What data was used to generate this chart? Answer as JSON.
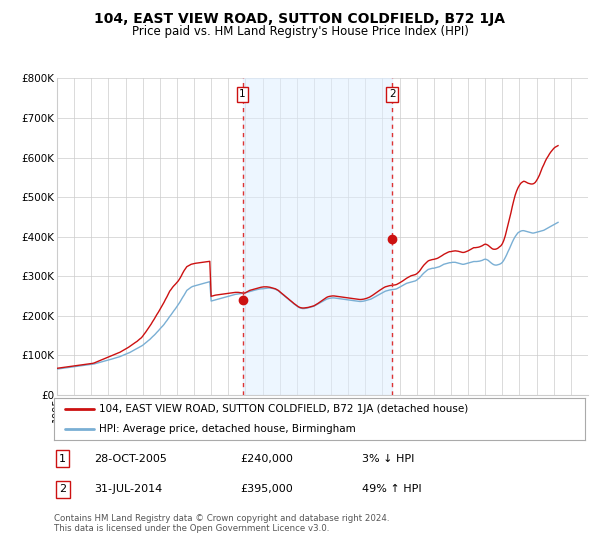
{
  "title": "104, EAST VIEW ROAD, SUTTON COLDFIELD, B72 1JA",
  "subtitle": "Price paid vs. HM Land Registry's House Price Index (HPI)",
  "title_fontsize": 10,
  "subtitle_fontsize": 8.5,
  "ylabel_ticks": [
    "£0",
    "£100K",
    "£200K",
    "£300K",
    "£400K",
    "£500K",
    "£600K",
    "£700K",
    "£800K"
  ],
  "ytick_values": [
    0,
    100000,
    200000,
    300000,
    400000,
    500000,
    600000,
    700000,
    800000
  ],
  "ylim": [
    0,
    800000
  ],
  "xlim_start": 1995,
  "xlim_end": 2026,
  "hpi_color": "#7aafd4",
  "price_color": "#cc1111",
  "marker_color": "#cc1111",
  "shade_color": "#ddeeff",
  "grid_color": "#cccccc",
  "vline_color": "#dd3333",
  "vline_style": ":",
  "background_color": "#ffffff",
  "legend_border_color": "#aaaaaa",
  "transaction1_year": 2005.83,
  "transaction1_price": 240000,
  "transaction1_label": "1",
  "transaction1_date": "28-OCT-2005",
  "transaction1_pct": "3% ↓ HPI",
  "transaction2_year": 2014.58,
  "transaction2_price": 395000,
  "transaction2_label": "2",
  "transaction2_date": "31-JUL-2014",
  "transaction2_pct": "49% ↑ HPI",
  "legend1_text": "104, EAST VIEW ROAD, SUTTON COLDFIELD, B72 1JA (detached house)",
  "legend2_text": "HPI: Average price, detached house, Birmingham",
  "footer_text": "Contains HM Land Registry data © Crown copyright and database right 2024.\nThis data is licensed under the Open Government Licence v3.0.",
  "hpi_years": [
    1995,
    1995.08,
    1995.17,
    1995.25,
    1995.33,
    1995.42,
    1995.5,
    1995.58,
    1995.67,
    1995.75,
    1995.83,
    1995.92,
    1996,
    1996.08,
    1996.17,
    1996.25,
    1996.33,
    1996.42,
    1996.5,
    1996.58,
    1996.67,
    1996.75,
    1996.83,
    1996.92,
    1997,
    1997.08,
    1997.17,
    1997.25,
    1997.33,
    1997.42,
    1997.5,
    1997.58,
    1997.67,
    1997.75,
    1997.83,
    1997.92,
    1998,
    1998.08,
    1998.17,
    1998.25,
    1998.33,
    1998.42,
    1998.5,
    1998.58,
    1998.67,
    1998.75,
    1998.83,
    1998.92,
    1999,
    1999.08,
    1999.17,
    1999.25,
    1999.33,
    1999.42,
    1999.5,
    1999.58,
    1999.67,
    1999.75,
    1999.83,
    1999.92,
    2000,
    2000.08,
    2000.17,
    2000.25,
    2000.33,
    2000.42,
    2000.5,
    2000.58,
    2000.67,
    2000.75,
    2000.83,
    2000.92,
    2001,
    2001.08,
    2001.17,
    2001.25,
    2001.33,
    2001.42,
    2001.5,
    2001.58,
    2001.67,
    2001.75,
    2001.83,
    2001.92,
    2002,
    2002.08,
    2002.17,
    2002.25,
    2002.33,
    2002.42,
    2002.5,
    2002.58,
    2002.67,
    2002.75,
    2002.83,
    2002.92,
    2003,
    2003.08,
    2003.17,
    2003.25,
    2003.33,
    2003.42,
    2003.5,
    2003.58,
    2003.67,
    2003.75,
    2003.83,
    2003.92,
    2004,
    2004.08,
    2004.17,
    2004.25,
    2004.33,
    2004.42,
    2004.5,
    2004.58,
    2004.67,
    2004.75,
    2004.83,
    2004.92,
    2005,
    2005.08,
    2005.17,
    2005.25,
    2005.33,
    2005.42,
    2005.5,
    2005.58,
    2005.67,
    2005.75,
    2005.83,
    2005.92,
    2006,
    2006.08,
    2006.17,
    2006.25,
    2006.33,
    2006.42,
    2006.5,
    2006.58,
    2006.67,
    2006.75,
    2006.83,
    2006.92,
    2007,
    2007.08,
    2007.17,
    2007.25,
    2007.33,
    2007.42,
    2007.5,
    2007.58,
    2007.67,
    2007.75,
    2007.83,
    2007.92,
    2008,
    2008.08,
    2008.17,
    2008.25,
    2008.33,
    2008.42,
    2008.5,
    2008.58,
    2008.67,
    2008.75,
    2008.83,
    2008.92,
    2009,
    2009.08,
    2009.17,
    2009.25,
    2009.33,
    2009.42,
    2009.5,
    2009.58,
    2009.67,
    2009.75,
    2009.83,
    2009.92,
    2010,
    2010.08,
    2010.17,
    2010.25,
    2010.33,
    2010.42,
    2010.5,
    2010.58,
    2010.67,
    2010.75,
    2010.83,
    2010.92,
    2011,
    2011.08,
    2011.17,
    2011.25,
    2011.33,
    2011.42,
    2011.5,
    2011.58,
    2011.67,
    2011.75,
    2011.83,
    2011.92,
    2012,
    2012.08,
    2012.17,
    2012.25,
    2012.33,
    2012.42,
    2012.5,
    2012.58,
    2012.67,
    2012.75,
    2012.83,
    2012.92,
    2013,
    2013.08,
    2013.17,
    2013.25,
    2013.33,
    2013.42,
    2013.5,
    2013.58,
    2013.67,
    2013.75,
    2013.83,
    2013.92,
    2014,
    2014.08,
    2014.17,
    2014.25,
    2014.33,
    2014.42,
    2014.5,
    2014.58,
    2014.67,
    2014.75,
    2014.83,
    2014.92,
    2015,
    2015.08,
    2015.17,
    2015.25,
    2015.33,
    2015.42,
    2015.5,
    2015.58,
    2015.67,
    2015.75,
    2015.83,
    2015.92,
    2016,
    2016.08,
    2016.17,
    2016.25,
    2016.33,
    2016.42,
    2016.5,
    2016.58,
    2016.67,
    2016.75,
    2016.83,
    2016.92,
    2017,
    2017.08,
    2017.17,
    2017.25,
    2017.33,
    2017.42,
    2017.5,
    2017.58,
    2017.67,
    2017.75,
    2017.83,
    2017.92,
    2018,
    2018.08,
    2018.17,
    2018.25,
    2018.33,
    2018.42,
    2018.5,
    2018.58,
    2018.67,
    2018.75,
    2018.83,
    2018.92,
    2019,
    2019.08,
    2019.17,
    2019.25,
    2019.33,
    2019.42,
    2019.5,
    2019.58,
    2019.67,
    2019.75,
    2019.83,
    2019.92,
    2020,
    2020.08,
    2020.17,
    2020.25,
    2020.33,
    2020.42,
    2020.5,
    2020.58,
    2020.67,
    2020.75,
    2020.83,
    2020.92,
    2021,
    2021.08,
    2021.17,
    2021.25,
    2021.33,
    2021.42,
    2021.5,
    2021.58,
    2021.67,
    2021.75,
    2021.83,
    2021.92,
    2022,
    2022.08,
    2022.17,
    2022.25,
    2022.33,
    2022.42,
    2022.5,
    2022.58,
    2022.67,
    2022.75,
    2022.83,
    2022.92,
    2023,
    2023.08,
    2023.17,
    2023.25,
    2023.33,
    2023.42,
    2023.5,
    2023.58,
    2023.67,
    2023.75,
    2023.83,
    2023.92,
    2024,
    2024.08,
    2024.17,
    2024.25
  ],
  "hpi_values": [
    65000,
    65500,
    66000,
    66500,
    67000,
    67500,
    68000,
    68500,
    69000,
    69500,
    70000,
    70500,
    71000,
    71500,
    72000,
    72500,
    73000,
    73500,
    74000,
    74500,
    75000,
    75500,
    76000,
    76500,
    77000,
    77500,
    78000,
    79000,
    80000,
    81000,
    82000,
    83000,
    84000,
    85000,
    86000,
    87000,
    88000,
    89000,
    90000,
    91000,
    92000,
    93000,
    94000,
    95000,
    96500,
    98000,
    99500,
    101000,
    102500,
    104000,
    105500,
    107000,
    109000,
    111000,
    113000,
    115000,
    117000,
    119000,
    121000,
    123000,
    125000,
    128000,
    131000,
    134000,
    137000,
    140000,
    143500,
    147000,
    150500,
    154000,
    158000,
    162000,
    166000,
    170000,
    174000,
    178000,
    183000,
    188000,
    193000,
    198000,
    203000,
    208000,
    213000,
    218000,
    223000,
    228000,
    234000,
    240000,
    246000,
    252000,
    258000,
    264000,
    267000,
    270000,
    272000,
    274000,
    275000,
    276000,
    277000,
    278000,
    279000,
    280000,
    281000,
    282000,
    283000,
    284000,
    285000,
    286000,
    237000,
    238000,
    239000,
    240000,
    241000,
    242000,
    243000,
    244000,
    245000,
    246000,
    247000,
    248000,
    249000,
    250000,
    251000,
    252000,
    253000,
    254000,
    254500,
    255000,
    255500,
    256000,
    256500,
    257000,
    258000,
    259000,
    260000,
    261000,
    262000,
    263000,
    264000,
    265000,
    266000,
    267000,
    267500,
    268000,
    268000,
    268500,
    269000,
    269500,
    270000,
    270000,
    269500,
    269000,
    268000,
    267000,
    265000,
    263000,
    260000,
    257000,
    254000,
    251000,
    248000,
    245000,
    242000,
    239000,
    236000,
    233000,
    230000,
    227000,
    224000,
    222000,
    220000,
    219000,
    218000,
    218000,
    218500,
    219000,
    220000,
    221000,
    222000,
    223000,
    224000,
    226000,
    228000,
    230000,
    232000,
    234000,
    236000,
    238000,
    240000,
    242000,
    243000,
    244000,
    244500,
    245000,
    245000,
    244500,
    244000,
    243500,
    243000,
    242500,
    242000,
    241500,
    241000,
    240500,
    240000,
    239500,
    239000,
    238500,
    238000,
    237500,
    237000,
    236500,
    236000,
    236000,
    236500,
    237000,
    238000,
    239000,
    240000,
    241000,
    242000,
    244000,
    246000,
    248000,
    250000,
    252000,
    254000,
    256000,
    258000,
    260000,
    262000,
    263000,
    264000,
    265000,
    265500,
    266000,
    266500,
    267000,
    268000,
    270000,
    272000,
    274000,
    276000,
    278000,
    280000,
    282000,
    283000,
    284000,
    285000,
    286000,
    287000,
    288000,
    290000,
    293000,
    296000,
    300000,
    304000,
    308000,
    311000,
    314000,
    317000,
    318000,
    319000,
    320000,
    320000,
    321000,
    322000,
    323000,
    324000,
    326000,
    328000,
    330000,
    331000,
    332000,
    333000,
    334000,
    334000,
    335000,
    335000,
    335000,
    334000,
    333000,
    332000,
    331000,
    330000,
    330000,
    331000,
    332000,
    333000,
    334000,
    335000,
    336000,
    337000,
    337000,
    337000,
    337500,
    338000,
    339000,
    340000,
    342000,
    343000,
    342000,
    340000,
    337000,
    334000,
    331000,
    329000,
    328000,
    328000,
    329000,
    330000,
    332000,
    335000,
    340000,
    347000,
    354000,
    362000,
    370000,
    378000,
    386000,
    394000,
    400000,
    405000,
    410000,
    412000,
    414000,
    415000,
    415000,
    414000,
    413000,
    412000,
    411000,
    410000,
    409000,
    409000,
    410000,
    411000,
    412000,
    413000,
    414000,
    415000,
    416000,
    418000,
    420000,
    422000,
    424000,
    426000,
    428000,
    430000,
    432000,
    434000,
    436000
  ],
  "price_years": [
    1995,
    1995.08,
    1995.17,
    1995.25,
    1995.33,
    1995.42,
    1995.5,
    1995.58,
    1995.67,
    1995.75,
    1995.83,
    1995.92,
    1996,
    1996.08,
    1996.17,
    1996.25,
    1996.33,
    1996.42,
    1996.5,
    1996.58,
    1996.67,
    1996.75,
    1996.83,
    1996.92,
    1997,
    1997.08,
    1997.17,
    1997.25,
    1997.33,
    1997.42,
    1997.5,
    1997.58,
    1997.67,
    1997.75,
    1997.83,
    1997.92,
    1998,
    1998.08,
    1998.17,
    1998.25,
    1998.33,
    1998.42,
    1998.5,
    1998.58,
    1998.67,
    1998.75,
    1998.83,
    1998.92,
    1999,
    1999.08,
    1999.17,
    1999.25,
    1999.33,
    1999.42,
    1999.5,
    1999.58,
    1999.67,
    1999.75,
    1999.83,
    1999.92,
    2000,
    2000.08,
    2000.17,
    2000.25,
    2000.33,
    2000.42,
    2000.5,
    2000.58,
    2000.67,
    2000.75,
    2000.83,
    2000.92,
    2001,
    2001.08,
    2001.17,
    2001.25,
    2001.33,
    2001.42,
    2001.5,
    2001.58,
    2001.67,
    2001.75,
    2001.83,
    2001.92,
    2002,
    2002.08,
    2002.17,
    2002.25,
    2002.33,
    2002.42,
    2002.5,
    2002.58,
    2002.67,
    2002.75,
    2002.83,
    2002.92,
    2003,
    2003.08,
    2003.17,
    2003.25,
    2003.33,
    2003.42,
    2003.5,
    2003.58,
    2003.67,
    2003.75,
    2003.83,
    2003.92,
    2004,
    2004.08,
    2004.17,
    2004.25,
    2004.33,
    2004.42,
    2004.5,
    2004.58,
    2004.67,
    2004.75,
    2004.83,
    2004.92,
    2005,
    2005.08,
    2005.17,
    2005.25,
    2005.33,
    2005.42,
    2005.5,
    2005.58,
    2005.67,
    2005.75,
    2005.83,
    2005.92,
    2006,
    2006.08,
    2006.17,
    2006.25,
    2006.33,
    2006.42,
    2006.5,
    2006.58,
    2006.67,
    2006.75,
    2006.83,
    2006.92,
    2007,
    2007.08,
    2007.17,
    2007.25,
    2007.33,
    2007.42,
    2007.5,
    2007.58,
    2007.67,
    2007.75,
    2007.83,
    2007.92,
    2008,
    2008.08,
    2008.17,
    2008.25,
    2008.33,
    2008.42,
    2008.5,
    2008.58,
    2008.67,
    2008.75,
    2008.83,
    2008.92,
    2009,
    2009.08,
    2009.17,
    2009.25,
    2009.33,
    2009.42,
    2009.5,
    2009.58,
    2009.67,
    2009.75,
    2009.83,
    2009.92,
    2010,
    2010.08,
    2010.17,
    2010.25,
    2010.33,
    2010.42,
    2010.5,
    2010.58,
    2010.67,
    2010.75,
    2010.83,
    2010.92,
    2011,
    2011.08,
    2011.17,
    2011.25,
    2011.33,
    2011.42,
    2011.5,
    2011.58,
    2011.67,
    2011.75,
    2011.83,
    2011.92,
    2012,
    2012.08,
    2012.17,
    2012.25,
    2012.33,
    2012.42,
    2012.5,
    2012.58,
    2012.67,
    2012.75,
    2012.83,
    2012.92,
    2013,
    2013.08,
    2013.17,
    2013.25,
    2013.33,
    2013.42,
    2013.5,
    2013.58,
    2013.67,
    2013.75,
    2013.83,
    2013.92,
    2014,
    2014.08,
    2014.17,
    2014.25,
    2014.33,
    2014.42,
    2014.5,
    2014.58,
    2014.67,
    2014.75,
    2014.83,
    2014.92,
    2015,
    2015.08,
    2015.17,
    2015.25,
    2015.33,
    2015.42,
    2015.5,
    2015.58,
    2015.67,
    2015.75,
    2015.83,
    2015.92,
    2016,
    2016.08,
    2016.17,
    2016.25,
    2016.33,
    2016.42,
    2016.5,
    2016.58,
    2016.67,
    2016.75,
    2016.83,
    2016.92,
    2017,
    2017.08,
    2017.17,
    2017.25,
    2017.33,
    2017.42,
    2017.5,
    2017.58,
    2017.67,
    2017.75,
    2017.83,
    2017.92,
    2018,
    2018.08,
    2018.17,
    2018.25,
    2018.33,
    2018.42,
    2018.5,
    2018.58,
    2018.67,
    2018.75,
    2018.83,
    2018.92,
    2019,
    2019.08,
    2019.17,
    2019.25,
    2019.33,
    2019.42,
    2019.5,
    2019.58,
    2019.67,
    2019.75,
    2019.83,
    2019.92,
    2020,
    2020.08,
    2020.17,
    2020.25,
    2020.33,
    2020.42,
    2020.5,
    2020.58,
    2020.67,
    2020.75,
    2020.83,
    2020.92,
    2021,
    2021.08,
    2021.17,
    2021.25,
    2021.33,
    2021.42,
    2021.5,
    2021.58,
    2021.67,
    2021.75,
    2021.83,
    2021.92,
    2022,
    2022.08,
    2022.17,
    2022.25,
    2022.33,
    2022.42,
    2022.5,
    2022.58,
    2022.67,
    2022.75,
    2022.83,
    2022.92,
    2023,
    2023.08,
    2023.17,
    2023.25,
    2023.33,
    2023.42,
    2023.5,
    2023.58,
    2023.67,
    2023.75,
    2023.83,
    2023.92,
    2024,
    2024.08,
    2024.17,
    2024.25
  ],
  "price_values": [
    67000,
    67500,
    68000,
    68500,
    69000,
    69500,
    70000,
    70500,
    71000,
    71500,
    72000,
    72500,
    73000,
    73500,
    74000,
    74500,
    75000,
    75500,
    76000,
    76500,
    77000,
    77500,
    78000,
    78500,
    79000,
    79500,
    80500,
    82000,
    83500,
    85000,
    86500,
    88000,
    89500,
    91000,
    92500,
    94000,
    95500,
    97000,
    98500,
    100000,
    101500,
    103000,
    104500,
    106000,
    107500,
    109500,
    111500,
    113500,
    115500,
    117500,
    120000,
    122500,
    125000,
    127500,
    130000,
    132500,
    135000,
    138000,
    141000,
    144000,
    148000,
    153000,
    158000,
    163000,
    168000,
    173500,
    179000,
    185000,
    191000,
    197000,
    203000,
    209000,
    215000,
    221000,
    227500,
    234000,
    241000,
    248000,
    255000,
    262000,
    267000,
    272000,
    276000,
    280000,
    284000,
    288000,
    294000,
    300000,
    307000,
    314000,
    319000,
    324000,
    326000,
    328000,
    330000,
    331000,
    332000,
    332500,
    333000,
    333500,
    334000,
    334500,
    335000,
    335500,
    336000,
    336500,
    337000,
    337500,
    249000,
    250000,
    251000,
    252000,
    252500,
    253000,
    253500,
    254000,
    254500,
    255000,
    255500,
    256000,
    256500,
    257000,
    257500,
    258000,
    258500,
    259000,
    259000,
    259000,
    258500,
    258000,
    257500,
    257000,
    258000,
    260000,
    262000,
    264000,
    265000,
    266000,
    267000,
    268000,
    269000,
    270000,
    271000,
    272000,
    272500,
    273000,
    273000,
    273000,
    272500,
    272000,
    271000,
    270000,
    269000,
    268000,
    266000,
    264000,
    261000,
    258000,
    255000,
    252000,
    249000,
    246000,
    243000,
    240000,
    237000,
    234000,
    231000,
    228000,
    225000,
    223000,
    221000,
    220000,
    219500,
    219500,
    220000,
    220500,
    221000,
    222000,
    223000,
    224000,
    225000,
    227000,
    229000,
    231500,
    234000,
    236500,
    239000,
    241500,
    244000,
    246500,
    248000,
    249000,
    249500,
    250000,
    250000,
    249500,
    249000,
    248500,
    248000,
    247500,
    247000,
    246500,
    246000,
    245500,
    245000,
    244500,
    244000,
    243500,
    243000,
    242500,
    242000,
    241500,
    241000,
    241000,
    241500,
    242000,
    243000,
    244000,
    245500,
    247000,
    249000,
    251500,
    254000,
    256500,
    259000,
    261500,
    264000,
    266500,
    269000,
    271000,
    273000,
    274000,
    275000,
    276000,
    276500,
    277000,
    277500,
    278000,
    279000,
    281000,
    283000,
    285000,
    287500,
    290000,
    292500,
    295000,
    297000,
    299000,
    301000,
    302000,
    303000,
    304000,
    306000,
    309000,
    313000,
    318000,
    323000,
    328000,
    331500,
    335000,
    338500,
    340000,
    341000,
    342000,
    342500,
    343500,
    344500,
    346000,
    348000,
    350000,
    352500,
    355000,
    357000,
    359000,
    360500,
    362000,
    362000,
    363000,
    363500,
    364000,
    363500,
    363000,
    362000,
    361000,
    360000,
    360000,
    361000,
    362500,
    364000,
    366000,
    368000,
    370000,
    372000,
    372000,
    372500,
    373000,
    374000,
    375500,
    377000,
    379500,
    381000,
    380000,
    378000,
    375000,
    372000,
    369000,
    368000,
    368000,
    369000,
    371000,
    374000,
    377000,
    382000,
    390000,
    402000,
    416000,
    430000,
    445000,
    460000,
    476000,
    492000,
    505000,
    515000,
    524000,
    530000,
    535000,
    538000,
    540000,
    539000,
    537000,
    535000,
    534000,
    533000,
    533000,
    534000,
    537000,
    542000,
    548000,
    556000,
    565000,
    574000,
    582000,
    590000,
    597000,
    603000,
    609000,
    614000,
    619000,
    623000,
    626000,
    628000,
    630000
  ]
}
